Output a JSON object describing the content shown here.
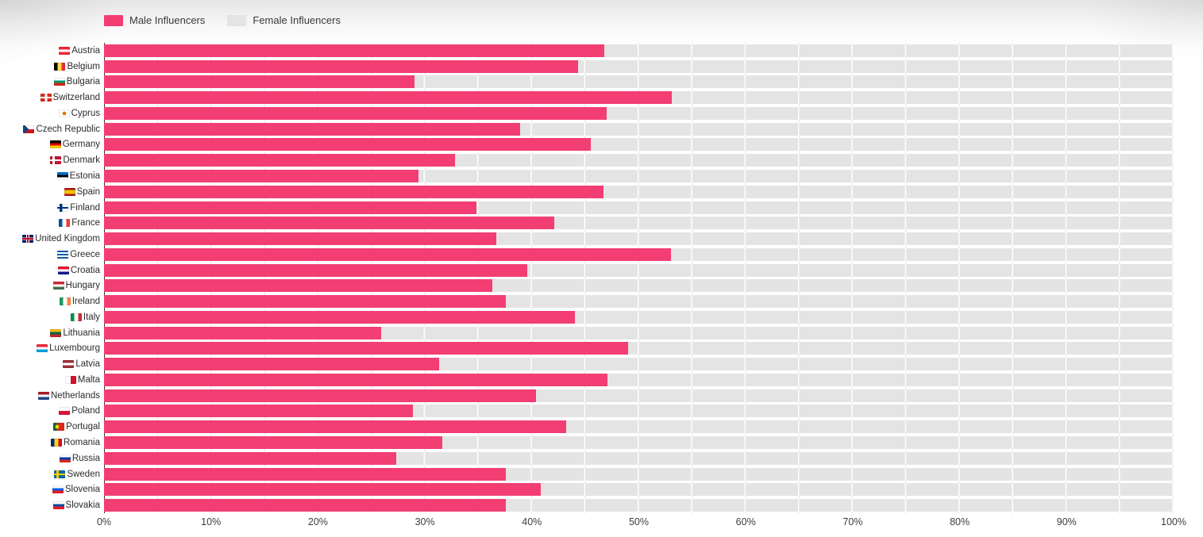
{
  "colors": {
    "male": "#F23E72",
    "female_track": "#E4E4E4",
    "axis_line": "#333333",
    "label_text": "#2b2b2b"
  },
  "legend": {
    "male_label": "Male Influencers",
    "female_label": "Female Influencers"
  },
  "chart_data": {
    "type": "bar",
    "orientation": "horizontal",
    "title": "",
    "xlabel": "",
    "ylabel": "",
    "xlim": [
      0,
      100
    ],
    "unit": "%",
    "grid": "vertical gridlines every 5%",
    "legend_position": "top-left",
    "legend": [
      "Male Influencers",
      "Female Influencers"
    ],
    "x_ticks": [
      "0%",
      "10%",
      "20%",
      "30%",
      "40%",
      "50%",
      "60%",
      "70%",
      "80%",
      "90%",
      "100%"
    ],
    "note": "Pink bar = Male Influencers share; gray full-width track = remainder (Female Influencers) to 100%",
    "rows": [
      {
        "country": "Austria",
        "male_pct": 46.8,
        "flag": {
          "dir": "h",
          "stripes": [
            "#ED2939",
            "#ffffff",
            "#ED2939"
          ]
        }
      },
      {
        "country": "Belgium",
        "male_pct": 44.3,
        "flag": {
          "dir": "v",
          "stripes": [
            "#000000",
            "#FAE042",
            "#ED2939"
          ]
        }
      },
      {
        "country": "Bulgaria",
        "male_pct": 29.0,
        "flag": {
          "dir": "h",
          "stripes": [
            "#ffffff",
            "#00966E",
            "#D62612"
          ]
        }
      },
      {
        "country": "Switzerland",
        "male_pct": 53.1,
        "flag": {
          "bg": "#DA291C",
          "cross": "#ffffff",
          "cx": 38,
          "cw": 24
        }
      },
      {
        "country": "Cyprus",
        "male_pct": 47.0,
        "flag": {
          "bg": "#ffffff",
          "dot": [
            "#D57800",
            50
          ]
        }
      },
      {
        "country": "Czech Republic",
        "male_pct": 38.9,
        "flag": {
          "dir": "h",
          "stripes": [
            "#ffffff",
            "#D7141A"
          ],
          "wedge": "#11457E"
        }
      },
      {
        "country": "Germany",
        "male_pct": 45.5,
        "flag": {
          "dir": "h",
          "stripes": [
            "#000000",
            "#DD0000",
            "#FFCE00"
          ]
        }
      },
      {
        "country": "Denmark",
        "male_pct": 32.8,
        "flag": {
          "bg": "#C8102E",
          "cross": "#ffffff",
          "cx": 22,
          "cw": 22
        }
      },
      {
        "country": "Estonia",
        "male_pct": 29.4,
        "flag": {
          "dir": "h",
          "stripes": [
            "#0072CE",
            "#000000",
            "#ffffff"
          ]
        }
      },
      {
        "country": "Spain",
        "male_pct": 46.7,
        "flag": {
          "dir": "h",
          "stripes": [
            "#AA151B",
            "#F1BF00",
            "#F1BF00",
            "#AA151B"
          ]
        }
      },
      {
        "country": "Finland",
        "male_pct": 34.8,
        "flag": {
          "bg": "#ffffff",
          "cross": "#003580",
          "cx": 22,
          "cw": 24
        }
      },
      {
        "country": "France",
        "male_pct": 42.1,
        "flag": {
          "dir": "v",
          "stripes": [
            "#0055A4",
            "#ffffff",
            "#EF4135"
          ]
        }
      },
      {
        "country": "United Kingdom",
        "male_pct": 36.7,
        "flag": {
          "bg": "#012169",
          "cross": "#C8102E",
          "cross2": "#ffffff",
          "cx": 36,
          "cw": 28
        }
      },
      {
        "country": "Greece",
        "male_pct": 53.0,
        "flag": {
          "dir": "h",
          "stripes": [
            "#0D5EAF",
            "#ffffff",
            "#0D5EAF",
            "#ffffff",
            "#0D5EAF"
          ]
        }
      },
      {
        "country": "Croatia",
        "male_pct": 39.6,
        "flag": {
          "dir": "h",
          "stripes": [
            "#E8112D",
            "#ffffff",
            "#171796"
          ]
        }
      },
      {
        "country": "Hungary",
        "male_pct": 36.3,
        "flag": {
          "dir": "h",
          "stripes": [
            "#CE2939",
            "#ffffff",
            "#477050"
          ]
        }
      },
      {
        "country": "Ireland",
        "male_pct": 37.6,
        "flag": {
          "dir": "v",
          "stripes": [
            "#169B62",
            "#ffffff",
            "#FF883E"
          ]
        }
      },
      {
        "country": "Italy",
        "male_pct": 44.0,
        "flag": {
          "dir": "v",
          "stripes": [
            "#009246",
            "#ffffff",
            "#CE2B37"
          ]
        }
      },
      {
        "country": "Lithuania",
        "male_pct": 25.9,
        "flag": {
          "dir": "h",
          "stripes": [
            "#FDB913",
            "#006A44",
            "#C1272D"
          ]
        }
      },
      {
        "country": "Luxembourg",
        "male_pct": 49.0,
        "flag": {
          "dir": "h",
          "stripes": [
            "#ED2939",
            "#ffffff",
            "#00A1DE"
          ]
        }
      },
      {
        "country": "Latvia",
        "male_pct": 31.3,
        "flag": {
          "dir": "h",
          "stripes": [
            "#9E3039",
            "#ffffff",
            "#9E3039"
          ]
        }
      },
      {
        "country": "Malta",
        "male_pct": 47.1,
        "flag": {
          "dir": "v",
          "stripes": [
            "#ffffff",
            "#CF142B"
          ]
        }
      },
      {
        "country": "Netherlands",
        "male_pct": 40.4,
        "flag": {
          "dir": "h",
          "stripes": [
            "#AE1C28",
            "#ffffff",
            "#21468B"
          ]
        }
      },
      {
        "country": "Poland",
        "male_pct": 28.9,
        "flag": {
          "dir": "h",
          "stripes": [
            "#ffffff",
            "#DC143C"
          ]
        }
      },
      {
        "country": "Portugal",
        "male_pct": 43.2,
        "flag": {
          "dir": "v",
          "stripes": [
            "#046A38",
            "#DA291C",
            "#DA291C"
          ],
          "dot": [
            "#FFDD00",
            35
          ]
        }
      },
      {
        "country": "Romania",
        "male_pct": 31.6,
        "flag": {
          "dir": "v",
          "stripes": [
            "#002B7F",
            "#FCD116",
            "#CE1126"
          ]
        }
      },
      {
        "country": "Russia",
        "male_pct": 27.3,
        "flag": {
          "dir": "h",
          "stripes": [
            "#ffffff",
            "#0039A6",
            "#D52B1E"
          ]
        }
      },
      {
        "country": "Sweden",
        "male_pct": 37.6,
        "flag": {
          "bg": "#006AA7",
          "cross": "#FECC02",
          "cx": 22,
          "cw": 22
        }
      },
      {
        "country": "Slovenia",
        "male_pct": 40.8,
        "flag": {
          "dir": "h",
          "stripes": [
            "#ffffff",
            "#005CE5",
            "#ED1C24"
          ]
        }
      },
      {
        "country": "Slovakia",
        "male_pct": 37.6,
        "flag": {
          "dir": "h",
          "stripes": [
            "#ffffff",
            "#0B4EA2",
            "#EE1C25"
          ]
        }
      }
    ]
  }
}
